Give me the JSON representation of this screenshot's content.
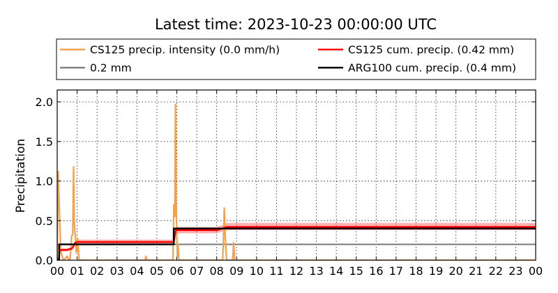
{
  "chart_data": {
    "type": "line",
    "title": "Latest time: 2023-10-23 00:00:00 UTC",
    "ylabel": "Precipitation",
    "xlabel": "",
    "xlim": [
      0,
      24
    ],
    "ylim": [
      0,
      2.15
    ],
    "grid": true,
    "legend_position": "top",
    "x_tick_labels": [
      "00",
      "01",
      "02",
      "03",
      "04",
      "05",
      "06",
      "07",
      "08",
      "09",
      "10",
      "11",
      "12",
      "13",
      "14",
      "15",
      "16",
      "17",
      "18",
      "19",
      "20",
      "21",
      "22",
      "23",
      "00"
    ],
    "y_ticks": [
      0.0,
      0.5,
      1.0,
      1.5,
      2.0
    ],
    "y_tick_labels": [
      "0.0",
      "0.5",
      "1.0",
      "1.5",
      "2.0"
    ],
    "series": [
      {
        "name": "CS125 precip. intensity (0.0 mm/h)",
        "color": "#f5a04a",
        "x": [
          0,
          0.05,
          0.08,
          0.1,
          0.13,
          0.18,
          0.25,
          0.3,
          0.4,
          0.5,
          0.6,
          0.65,
          0.72,
          0.78,
          0.82,
          0.85,
          0.9,
          0.95,
          1.0,
          1.02,
          1.1,
          1.2,
          4.4,
          4.45,
          4.5,
          5.8,
          5.85,
          5.9,
          5.93,
          5.96,
          6.0,
          6.03,
          6.06,
          6.1,
          8.3,
          8.35,
          8.38,
          8.42,
          8.46,
          8.5,
          8.8,
          8.85,
          8.9,
          24
        ],
        "y": [
          0,
          1.12,
          0.85,
          0.7,
          0.45,
          0.1,
          0.05,
          0.0,
          0.02,
          0.05,
          0.0,
          0.02,
          0.3,
          0.33,
          1.18,
          0.5,
          0.33,
          0.1,
          0.12,
          0.28,
          0.0,
          0.0,
          0.0,
          0.05,
          0.0,
          0.0,
          0.7,
          0.55,
          1.97,
          0.8,
          0.3,
          0.05,
          0.2,
          0.0,
          0.0,
          0.35,
          0.66,
          0.35,
          0.15,
          0.0,
          0.0,
          0.22,
          0.0,
          0.0
        ]
      },
      {
        "name": "CS125 cum. precip. (0.42 mm)",
        "color": "#ff0000",
        "x": [
          0,
          0.08,
          0.12,
          0.2,
          0.5,
          0.6,
          0.7,
          0.8,
          0.85,
          0.9,
          1.0,
          5.85,
          5.95,
          8.0,
          8.4,
          8.5,
          24
        ],
        "y": [
          0,
          0.02,
          0.12,
          0.13,
          0.13,
          0.14,
          0.14,
          0.17,
          0.2,
          0.22,
          0.23,
          0.23,
          0.38,
          0.38,
          0.41,
          0.42,
          0.42
        ],
        "band_lower": [
          0,
          0.0,
          0.1,
          0.11,
          0.11,
          0.12,
          0.12,
          0.15,
          0.18,
          0.2,
          0.2,
          0.2,
          0.34,
          0.34,
          0.37,
          0.38,
          0.38
        ],
        "band_upper": [
          0,
          0.04,
          0.14,
          0.15,
          0.15,
          0.16,
          0.16,
          0.19,
          0.22,
          0.24,
          0.26,
          0.26,
          0.42,
          0.42,
          0.45,
          0.47,
          0.47
        ]
      },
      {
        "name": "0.2 mm",
        "color": "#808080",
        "x": [
          0,
          24
        ],
        "y": [
          0.2,
          0.2
        ]
      },
      {
        "name": "ARG100 cum. precip. (0.4 mm)",
        "color": "#000000",
        "x": [
          0,
          0.1,
          0.1,
          1.0,
          1.0,
          5.85,
          5.85,
          24
        ],
        "y": [
          0,
          0,
          0.2,
          0.2,
          0.2,
          0.2,
          0.4,
          0.4
        ]
      }
    ],
    "legend_layout": [
      [
        "CS125 precip. intensity (0.0 mm/h)",
        "CS125 cum. precip. (0.42 mm)"
      ],
      [
        "0.2 mm",
        "ARG100 cum. precip. (0.4 mm)"
      ]
    ]
  }
}
